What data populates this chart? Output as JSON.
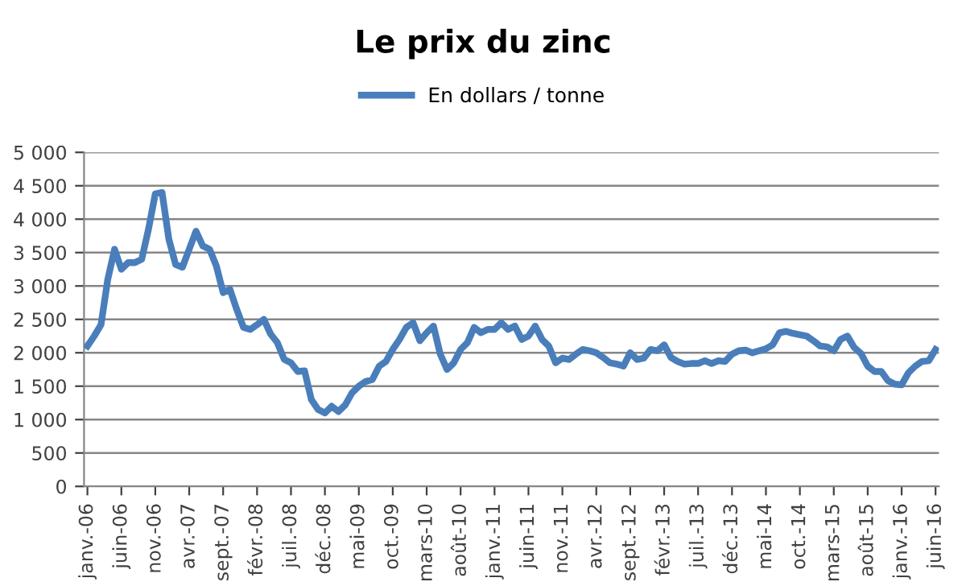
{
  "chart_data": {
    "type": "line",
    "title": "Le prix du zinc",
    "categories": [
      "janv.-06",
      null,
      null,
      null,
      null,
      "juin-06",
      null,
      null,
      null,
      null,
      "nov.-06",
      null,
      null,
      null,
      null,
      "avr.-07",
      null,
      null,
      null,
      null,
      "sept.-07",
      null,
      null,
      null,
      null,
      "févr.-08",
      null,
      null,
      null,
      null,
      "juil.-08",
      null,
      null,
      null,
      null,
      "déc.-08",
      null,
      null,
      null,
      null,
      "mai-09",
      null,
      null,
      null,
      null,
      "oct.-09",
      null,
      null,
      null,
      null,
      "mars-10",
      null,
      null,
      null,
      null,
      "août-10",
      null,
      null,
      null,
      null,
      "janv.-11",
      null,
      null,
      null,
      null,
      "juin-11",
      null,
      null,
      null,
      null,
      "nov.-11",
      null,
      null,
      null,
      null,
      "avr.-12",
      null,
      null,
      null,
      null,
      "sept.-12",
      null,
      null,
      null,
      null,
      "févr.-13",
      null,
      null,
      null,
      null,
      "juil.-13",
      null,
      null,
      null,
      null,
      "déc.-13",
      null,
      null,
      null,
      null,
      "mai-14",
      null,
      null,
      null,
      null,
      "oct.-14",
      null,
      null,
      null,
      null,
      "mars-15",
      null,
      null,
      null,
      null,
      "août-15",
      null,
      null,
      null,
      null,
      "janv.-16",
      null,
      null,
      null,
      null,
      "juin-16"
    ],
    "series": [
      {
        "name": "En dollars / tonne",
        "color": "#4a7ebb",
        "values": [
          2100,
          2250,
          2420,
          3100,
          3550,
          3250,
          3350,
          3350,
          3400,
          3850,
          4380,
          4400,
          3700,
          3320,
          3280,
          3550,
          3820,
          3600,
          3550,
          3300,
          2900,
          2950,
          2650,
          2380,
          2350,
          2420,
          2500,
          2280,
          2150,
          1900,
          1850,
          1720,
          1730,
          1300,
          1150,
          1100,
          1200,
          1120,
          1220,
          1400,
          1500,
          1570,
          1600,
          1800,
          1870,
          2050,
          2200,
          2380,
          2450,
          2180,
          2300,
          2400,
          1980,
          1750,
          1850,
          2050,
          2150,
          2380,
          2300,
          2350,
          2350,
          2450,
          2350,
          2400,
          2200,
          2250,
          2400,
          2200,
          2100,
          1850,
          1920,
          1900,
          1980,
          2050,
          2030,
          2000,
          1930,
          1850,
          1830,
          1800,
          2000,
          1900,
          1920,
          2050,
          2030,
          2120,
          1930,
          1870,
          1830,
          1840,
          1840,
          1880,
          1840,
          1880,
          1870,
          1980,
          2030,
          2040,
          2000,
          2030,
          2060,
          2120,
          2300,
          2320,
          2290,
          2270,
          2250,
          2180,
          2100,
          2090,
          2030,
          2200,
          2250,
          2080,
          1990,
          1800,
          1720,
          1720,
          1580,
          1530,
          1520,
          1700,
          1800,
          1870,
          1880,
          2050
        ]
      }
    ],
    "ylim": [
      0,
      5000
    ],
    "yticks": [
      0,
      {
        "value": 500,
        "label": "500"
      },
      {
        "value": 1000,
        "label": "1 000"
      },
      {
        "value": 1500,
        "label": "1 500"
      },
      {
        "value": 2000,
        "label": "2 000"
      },
      {
        "value": 2500,
        "label": "2 500"
      },
      {
        "value": 3000,
        "label": "3 000"
      },
      {
        "value": 3500,
        "label": "3 500"
      },
      {
        "value": 4000,
        "label": "4 000"
      },
      {
        "value": 4500,
        "label": "4 500"
      },
      {
        "value": 5000,
        "label": "5 000"
      }
    ],
    "grid": "y",
    "legend": "top",
    "marker": "none",
    "line_style": "solid"
  }
}
